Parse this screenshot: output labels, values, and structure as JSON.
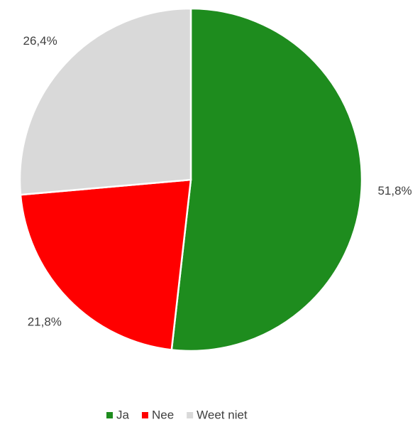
{
  "chart_data": {
    "type": "pie",
    "categories": [
      "Ja",
      "Nee",
      "Weet niet"
    ],
    "values": [
      51.8,
      21.8,
      26.4
    ],
    "value_labels": [
      "51,8%",
      "21,8%",
      "26,4%"
    ],
    "colors": [
      "#1e8c1e",
      "#ff0000",
      "#d9d9d9"
    ],
    "legend": "bottom"
  }
}
